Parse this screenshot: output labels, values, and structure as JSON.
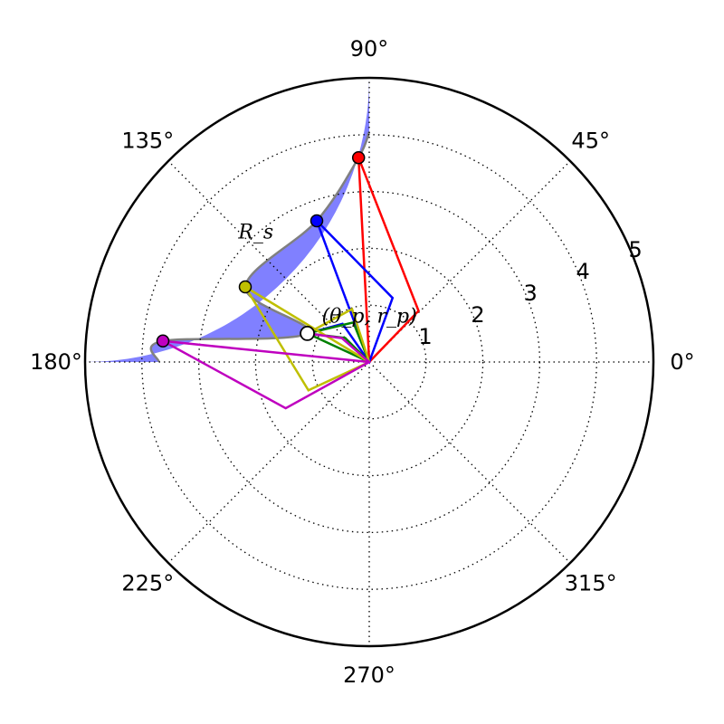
{
  "chart_data": {
    "type": "polar-line",
    "title": "",
    "theta_unit": "degrees",
    "rlim": [
      0,
      5
    ],
    "r_ticks": [
      "1",
      "2",
      "3",
      "4",
      "5"
    ],
    "theta_ticks": [
      "0°",
      "45°",
      "90°",
      "135°",
      "180°",
      "225°",
      "270°",
      "315°"
    ],
    "grid": true,
    "colors": {
      "red": "#ff0000",
      "blue": "#0000ff",
      "green": "#008000",
      "yellow": "#bfbf00",
      "magenta": "#bf00bf",
      "shade": "#8080ff",
      "boundary": "#808080"
    },
    "shaded_region": {
      "label": "R_s",
      "theta_range": [
        90,
        180
      ],
      "outer_r": 5
    },
    "reference_point": {
      "label": "(θ_p, r_p)",
      "theta": 155.2,
      "r": 1.2
    },
    "series": [
      {
        "color": "red",
        "endpoint": {
          "theta": 93.0,
          "r": 3.6
        },
        "points": [
          {
            "theta": 0,
            "r": 0
          },
          {
            "theta": 93.0,
            "r": 3.6
          },
          {
            "theta": 46.0,
            "r": 1.25
          },
          {
            "theta": 0,
            "r": 0
          }
        ]
      },
      {
        "color": "blue",
        "endpoint": {
          "theta": 110.4,
          "r": 2.65
        },
        "points": [
          {
            "theta": 0,
            "r": 0
          },
          {
            "theta": 110.4,
            "r": 2.65
          },
          {
            "theta": 70.0,
            "r": 1.2
          },
          {
            "theta": 0,
            "r": 0
          },
          {
            "theta": 125.0,
            "r": 0.82
          },
          {
            "theta": 155.2,
            "r": 1.2
          }
        ]
      },
      {
        "color": "green",
        "points": [
          {
            "theta": 0,
            "r": 0
          },
          {
            "theta": 155.2,
            "r": 1.2
          },
          {
            "theta": 112.0,
            "r": 0.75
          },
          {
            "theta": 0,
            "r": 0
          },
          {
            "theta": 135.0,
            "r": 0.6
          },
          {
            "theta": 155.2,
            "r": 1.2
          }
        ]
      },
      {
        "color": "yellow",
        "endpoint": {
          "theta": 148.8,
          "r": 2.55
        },
        "points": [
          {
            "theta": 0,
            "r": 0
          },
          {
            "theta": 148.8,
            "r": 2.55
          },
          {
            "theta": 205.0,
            "r": 1.18
          },
          {
            "theta": 0,
            "r": 0
          },
          {
            "theta": 108.0,
            "r": 0.98
          },
          {
            "theta": 155.2,
            "r": 1.2
          }
        ]
      },
      {
        "color": "magenta",
        "endpoint": {
          "theta": 174.2,
          "r": 3.65
        },
        "points": [
          {
            "theta": 0,
            "r": 0
          },
          {
            "theta": 174.2,
            "r": 3.65
          },
          {
            "theta": 209.0,
            "r": 1.68
          },
          {
            "theta": 0,
            "r": 0
          },
          {
            "theta": 139.0,
            "r": 0.64
          },
          {
            "theta": 155.2,
            "r": 1.2
          }
        ]
      }
    ]
  }
}
